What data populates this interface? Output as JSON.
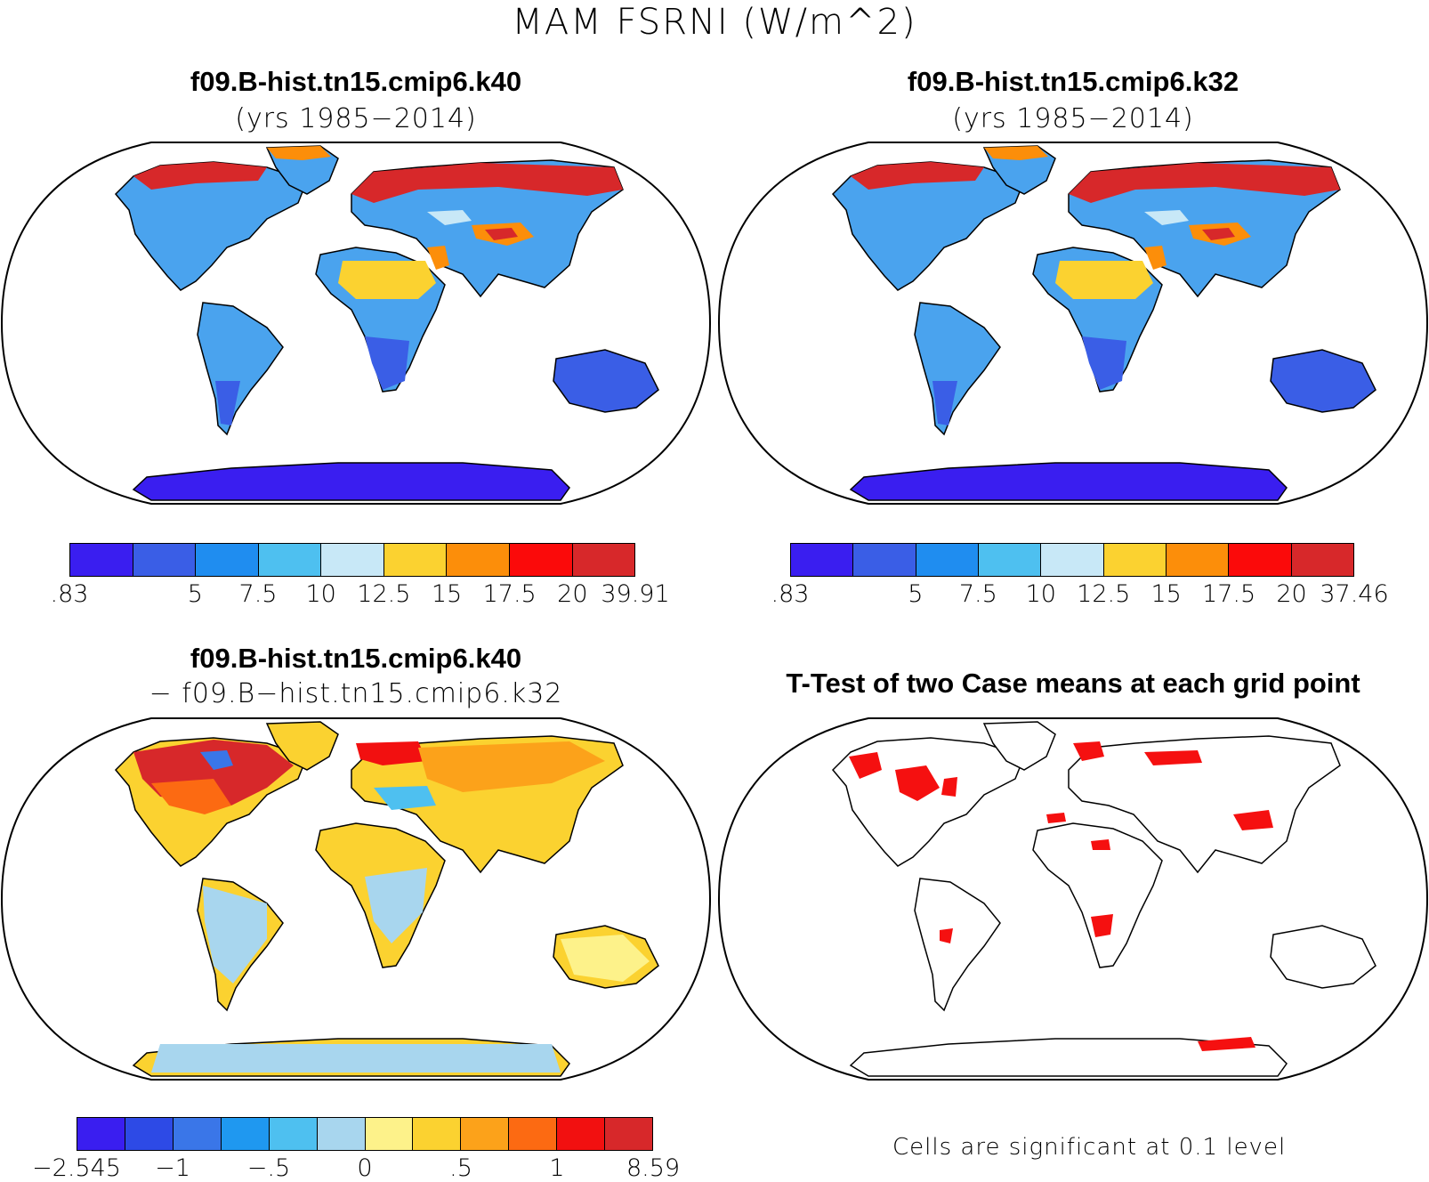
{
  "title": "MAM FSRNI (W/m^2)",
  "panels": [
    {
      "title": "f09.B-hist.tn15.cmip6.k40",
      "subtitle": "(yrs 1985−2014)"
    },
    {
      "title": "f09.B-hist.tn15.cmip6.k32",
      "subtitle": "(yrs 1985−2014)"
    },
    {
      "title": "f09.B-hist.tn15.cmip6.k40",
      "subtitle": "− f09.B−hist.tn15.cmip6.k32"
    },
    {
      "title": "T-Test of two Case means at each grid point"
    }
  ],
  "colorbars": [
    {
      "colors": [
        "#3a1ef0",
        "#3a5ee6",
        "#1f8df0",
        "#4ec0f0",
        "#c8e8f7",
        "#fbd230",
        "#fc8e0a",
        "#fb0a0a",
        "#d7282a"
      ],
      "labels": [
        ".83",
        "5",
        "7.5",
        "10",
        "12.5",
        "15",
        "17.5",
        "20",
        "39.91"
      ]
    },
    {
      "colors": [
        "#3a1ef0",
        "#3a5ee6",
        "#1f8df0",
        "#4ec0f0",
        "#c8e8f7",
        "#fbd230",
        "#fc8e0a",
        "#fb0a0a",
        "#d7282a"
      ],
      "labels": [
        ".83",
        "5",
        "7.5",
        "10",
        "12.5",
        "15",
        "17.5",
        "20",
        "37.46"
      ]
    },
    {
      "colors": [
        "#3a1ef0",
        "#2d4ae6",
        "#3a76e8",
        "#1f98f0",
        "#4ec0f0",
        "#a8d6ee",
        "#fdf28a",
        "#fbd230",
        "#fca21a",
        "#fc6a12",
        "#f21010",
        "#d7282a"
      ],
      "labels": [
        "−2.545",
        "−1",
        "−.5",
        "0",
        ".5",
        "1",
        "8.59"
      ]
    }
  ],
  "significance_note": "Cells are significant at 0.1 level",
  "colors": {
    "land_base": "#4aa3ee",
    "significant": "#f51010",
    "border": "#000000"
  }
}
